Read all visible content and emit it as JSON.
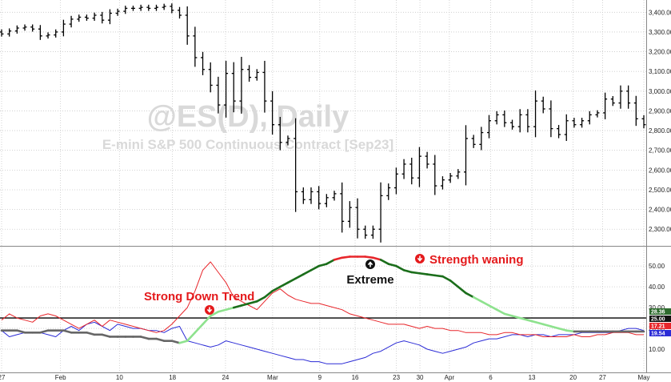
{
  "watermark": {
    "symbol": "@ES(D), Daily",
    "contract": "E-mini S&P 500 Continuous Contract [Sep23]"
  },
  "annotations": {
    "strong_down_trend": "Strong Down Trend",
    "extreme": "Extreme",
    "strength_waning": "Strength waning"
  },
  "colors": {
    "price_bar": "#000000",
    "plus_di": "#e8262b",
    "minus_di": "#2b2bd6",
    "adx_rising_dark": "#1b6e1b",
    "adx_rising_light": "#8ee28e",
    "adx_falling": "#666666",
    "adx_peak": "#e8262b",
    "threshold_line": "#000000"
  },
  "chart_data": [
    {
      "type": "ohlc",
      "name": "price",
      "x_labels": [
        "27",
        "Feb",
        "10",
        "18",
        "24",
        "Mar",
        "9",
        "16",
        "23",
        "30",
        "Apr",
        "6",
        "13",
        "20",
        "27",
        "May"
      ],
      "y_ticks": [
        2300,
        2400,
        2500,
        2600,
        2700,
        2800,
        2900,
        3000,
        3100,
        3200,
        3300,
        3400
      ],
      "y_tick_labels": [
        "2,300.00",
        "2,400.00",
        "2,500.00",
        "2,600.00",
        "2,700.00",
        "2,800.00",
        "2,900.00",
        "3,000.00",
        "3,100.00",
        "3,200.00",
        "3,300.00",
        "3,400.00"
      ],
      "ylim": [
        2240,
        3450
      ],
      "grid": true,
      "close": [
        3290,
        3305,
        3320,
        3325,
        3315,
        3280,
        3285,
        3300,
        3340,
        3365,
        3375,
        3370,
        3385,
        3360,
        3395,
        3405,
        3420,
        3420,
        3425,
        3420,
        3425,
        3430,
        3410,
        3385,
        3280,
        3170,
        3110,
        3030,
        2930,
        3090,
        2950,
        3110,
        3070,
        3095,
        2950,
        2830,
        2740,
        2760,
        2490,
        2450,
        2490,
        2430,
        2460,
        2480,
        2340,
        2410,
        2300,
        2270,
        2300,
        2470,
        2510,
        2580,
        2630,
        2560,
        2670,
        2630,
        2520,
        2550,
        2570,
        2590,
        2760,
        2730,
        2790,
        2850,
        2880,
        2840,
        2820,
        2880,
        2820,
        2950,
        2910,
        2810,
        2780,
        2850,
        2830,
        2850,
        2880,
        2890,
        2960,
        2940,
        3000,
        2940,
        2860,
        2830
      ]
    },
    {
      "type": "line",
      "name": "dmi",
      "y_ticks": [
        10,
        20,
        30,
        40,
        50
      ],
      "y_tick_labels": [
        "10.00",
        "20.00",
        "30.00",
        "40.00",
        "50.00"
      ],
      "ylim": [
        0,
        57
      ],
      "threshold": 25,
      "last_values": [
        "28.36",
        "25.00",
        "17.21",
        "19.54"
      ],
      "plus_di": [
        24,
        27,
        25,
        24,
        23,
        26,
        27,
        26,
        24,
        22,
        20,
        22,
        24,
        21,
        24,
        23,
        22,
        21,
        20,
        19,
        18,
        19,
        22,
        26,
        30,
        38,
        48,
        52,
        47,
        42,
        35,
        33,
        31,
        29,
        33,
        37,
        39,
        36,
        34,
        33,
        32,
        32,
        31,
        30,
        29,
        27,
        26,
        25,
        24,
        23,
        22,
        22,
        22,
        21,
        20,
        21,
        20,
        20,
        19,
        19,
        18,
        18,
        18,
        17,
        17,
        18,
        18,
        17,
        17,
        17,
        16,
        16,
        16,
        16,
        17,
        16,
        16,
        17,
        17,
        18,
        18,
        18,
        17,
        17
      ],
      "minus_di": [
        19,
        16,
        17,
        18,
        18,
        18,
        17,
        16,
        19,
        21,
        19,
        22,
        23,
        21,
        19,
        22,
        21,
        20,
        20,
        19,
        19,
        18,
        20,
        21,
        14,
        13,
        12,
        11,
        12,
        14,
        13,
        12,
        11,
        10,
        9,
        8,
        7,
        6,
        5,
        5,
        4,
        4,
        3,
        3,
        3,
        4,
        5,
        6,
        8,
        9,
        11,
        13,
        14,
        13,
        12,
        10,
        9,
        8,
        9,
        10,
        11,
        13,
        14,
        15,
        15,
        16,
        17,
        17,
        16,
        17,
        17,
        16,
        17,
        17,
        17,
        18,
        18,
        18,
        18,
        18,
        19,
        20,
        20,
        19
      ],
      "adx": [
        19,
        19,
        19,
        18,
        18,
        18,
        19,
        19,
        19,
        18,
        18,
        18,
        17,
        17,
        16,
        16,
        16,
        16,
        16,
        15,
        15,
        14,
        14,
        13,
        14,
        18,
        22,
        26,
        28,
        29,
        30,
        31,
        32,
        33,
        35,
        38,
        40,
        42,
        44,
        46,
        48,
        50,
        51,
        53,
        54,
        54.5,
        54.5,
        54.5,
        54,
        53,
        51,
        50,
        48,
        47,
        46.5,
        46,
        45.5,
        45,
        43,
        40,
        37,
        35,
        33,
        31,
        29,
        27,
        26,
        25,
        24,
        23,
        22,
        21,
        20,
        19,
        18.5,
        18.5,
        18.5,
        18.5,
        18.5,
        18.5,
        18.5,
        18.5,
        18.5,
        18.5
      ]
    }
  ]
}
